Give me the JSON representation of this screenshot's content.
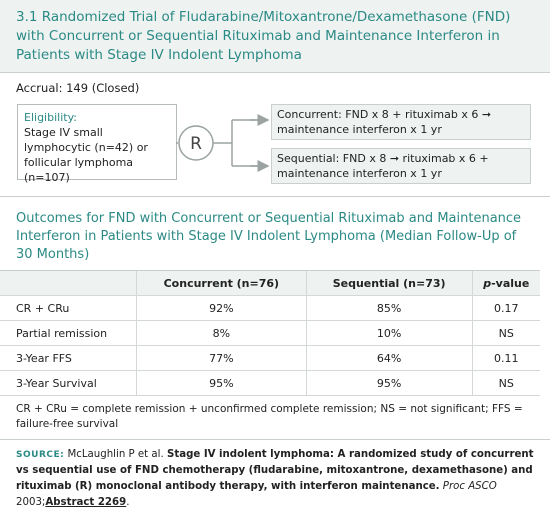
{
  "header": {
    "title": "3.1 Randomized Trial of Fludarabine/Mitoxantrone/Dexamethasone (FND) with Concurrent or Sequential Rituximab and Maintenance Interferon in Patients with Stage IV Indolent Lymphoma"
  },
  "accrual": "Accrual: 149 (Closed)",
  "eligibility": {
    "label": "Eligibility:",
    "text": "Stage IV small lymphocytic (n=42) or follicular lymphoma (n=107)"
  },
  "randomization": "R",
  "arms": [
    "Concurrent: FND x 8 + rituximab x 6 ➞ maintenance interferon x 1 yr",
    "Sequential: FND x 8 ➞ rituximab x 6 + maintenance interferon x 1 yr"
  ],
  "table": {
    "title": "Outcomes for FND with Concurrent or Sequential Rituximab and Maintenance Interferon in Patients with Stage IV Indolent Lymphoma (Median Follow-Up of 30 Months)",
    "header": [
      "Concurrent (n=76)",
      "Sequential (n=73)",
      {
        "italic": "p",
        "rest": "-value"
      }
    ],
    "rows": [
      [
        "CR + CRu",
        "92%",
        "85%",
        "0.17"
      ],
      [
        "Partial remission",
        "8%",
        "10%",
        "NS"
      ],
      [
        "3-Year FFS",
        "77%",
        "64%",
        "0.11"
      ],
      [
        "3-Year Survival",
        "95%",
        "95%",
        "NS"
      ]
    ]
  },
  "footnote": "CR + CRu = complete remission + unconfirmed complete remission; NS = not significant; FFS = failure-free survival",
  "source": {
    "label": "SOURCE:",
    "authors": "McLaughlin P et al.",
    "title": "Stage IV indolent lymphoma: A randomized study of concurrent vs sequential use of FND chemotherapy (fludarabine, mitoxantrone, dexamethasone) and rituximab (R) monoclonal antibody therapy, with interferon maintenance.",
    "journal": "Proc ASCO",
    "year": "2003;",
    "abstract": "Abstract 2269",
    "end": "."
  }
}
